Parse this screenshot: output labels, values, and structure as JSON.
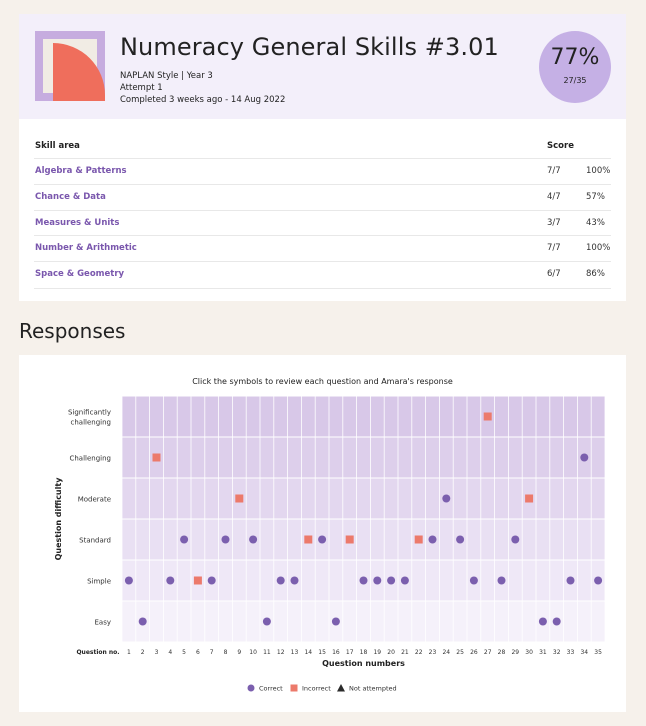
{
  "summary": {
    "title": "Numeracy General Skills #3.01",
    "subtitle": "NAPLAN Style | Year 3",
    "attempt": "Attempt 1",
    "completed": "Completed 3 weeks ago - 14 Aug 2022",
    "score_percent": "77%",
    "score_fraction": "27/35"
  },
  "skills": {
    "header_area": "Skill area",
    "header_score": "Score",
    "rows": [
      {
        "name": "Algebra & Patterns",
        "score": "7/7",
        "percent": "100%"
      },
      {
        "name": "Chance & Data",
        "score": "4/7",
        "percent": "57%"
      },
      {
        "name": "Measures & Units",
        "score": "3/7",
        "percent": "43%"
      },
      {
        "name": "Number & Arithmetic",
        "score": "7/7",
        "percent": "100%"
      },
      {
        "name": "Space & Geometry",
        "score": "6/7",
        "percent": "86%"
      }
    ]
  },
  "responses": {
    "section_title": "Responses",
    "caption": "Click the symbols to review each question and Amara's response"
  },
  "chart_data": {
    "type": "scatter",
    "title": "Click the symbols to review each question and Amara's response",
    "xlabel": "Question numbers",
    "ylabel": "Question difficulty",
    "x_row_label": "Question no.",
    "x_ticks": [
      1,
      2,
      3,
      4,
      5,
      6,
      7,
      8,
      9,
      10,
      11,
      12,
      13,
      14,
      15,
      16,
      17,
      18,
      19,
      20,
      21,
      22,
      23,
      24,
      25,
      26,
      27,
      28,
      29,
      30,
      31,
      32,
      33,
      34,
      35
    ],
    "y_categories": [
      {
        "label": "Easy",
        "lines": [
          "Easy"
        ]
      },
      {
        "label": "Simple",
        "lines": [
          "Simple"
        ]
      },
      {
        "label": "Standard",
        "lines": [
          "Standard"
        ]
      },
      {
        "label": "Moderate",
        "lines": [
          "Moderate"
        ]
      },
      {
        "label": "Challenging",
        "lines": [
          "Challenging"
        ]
      },
      {
        "label": "Significantly challenging",
        "lines": [
          "Significantly",
          "challenging"
        ]
      }
    ],
    "legend": [
      {
        "label": "Correct",
        "shape": "circle",
        "color": "#7b5fae"
      },
      {
        "label": "Incorrect",
        "shape": "square",
        "color": "#ec7a6b"
      },
      {
        "label": "Not attempted",
        "shape": "triangle",
        "color": "#2b2b2b"
      }
    ],
    "legend_position": "bottom",
    "grid": true,
    "points": [
      {
        "q": 1,
        "difficulty": "Simple",
        "result": "Correct"
      },
      {
        "q": 2,
        "difficulty": "Easy",
        "result": "Correct"
      },
      {
        "q": 3,
        "difficulty": "Challenging",
        "result": "Incorrect"
      },
      {
        "q": 4,
        "difficulty": "Simple",
        "result": "Correct"
      },
      {
        "q": 5,
        "difficulty": "Standard",
        "result": "Correct"
      },
      {
        "q": 6,
        "difficulty": "Simple",
        "result": "Incorrect"
      },
      {
        "q": 7,
        "difficulty": "Simple",
        "result": "Correct"
      },
      {
        "q": 8,
        "difficulty": "Standard",
        "result": "Correct"
      },
      {
        "q": 9,
        "difficulty": "Moderate",
        "result": "Incorrect"
      },
      {
        "q": 10,
        "difficulty": "Standard",
        "result": "Correct"
      },
      {
        "q": 11,
        "difficulty": "Easy",
        "result": "Correct"
      },
      {
        "q": 12,
        "difficulty": "Simple",
        "result": "Correct"
      },
      {
        "q": 13,
        "difficulty": "Simple",
        "result": "Correct"
      },
      {
        "q": 14,
        "difficulty": "Standard",
        "result": "Incorrect"
      },
      {
        "q": 15,
        "difficulty": "Standard",
        "result": "Correct"
      },
      {
        "q": 16,
        "difficulty": "Easy",
        "result": "Correct"
      },
      {
        "q": 17,
        "difficulty": "Standard",
        "result": "Incorrect"
      },
      {
        "q": 18,
        "difficulty": "Simple",
        "result": "Correct"
      },
      {
        "q": 19,
        "difficulty": "Simple",
        "result": "Correct"
      },
      {
        "q": 20,
        "difficulty": "Simple",
        "result": "Correct"
      },
      {
        "q": 21,
        "difficulty": "Simple",
        "result": "Correct"
      },
      {
        "q": 22,
        "difficulty": "Standard",
        "result": "Incorrect"
      },
      {
        "q": 23,
        "difficulty": "Standard",
        "result": "Correct"
      },
      {
        "q": 24,
        "difficulty": "Moderate",
        "result": "Correct"
      },
      {
        "q": 25,
        "difficulty": "Standard",
        "result": "Correct"
      },
      {
        "q": 26,
        "difficulty": "Simple",
        "result": "Correct"
      },
      {
        "q": 27,
        "difficulty": "Significantly challenging",
        "result": "Incorrect"
      },
      {
        "q": 28,
        "difficulty": "Simple",
        "result": "Correct"
      },
      {
        "q": 29,
        "difficulty": "Standard",
        "result": "Correct"
      },
      {
        "q": 30,
        "difficulty": "Moderate",
        "result": "Incorrect"
      },
      {
        "q": 31,
        "difficulty": "Easy",
        "result": "Correct"
      },
      {
        "q": 32,
        "difficulty": "Easy",
        "result": "Correct"
      },
      {
        "q": 33,
        "difficulty": "Simple",
        "result": "Correct"
      },
      {
        "q": 34,
        "difficulty": "Challenging",
        "result": "Correct"
      },
      {
        "q": 35,
        "difficulty": "Simple",
        "result": "Correct"
      }
    ]
  }
}
